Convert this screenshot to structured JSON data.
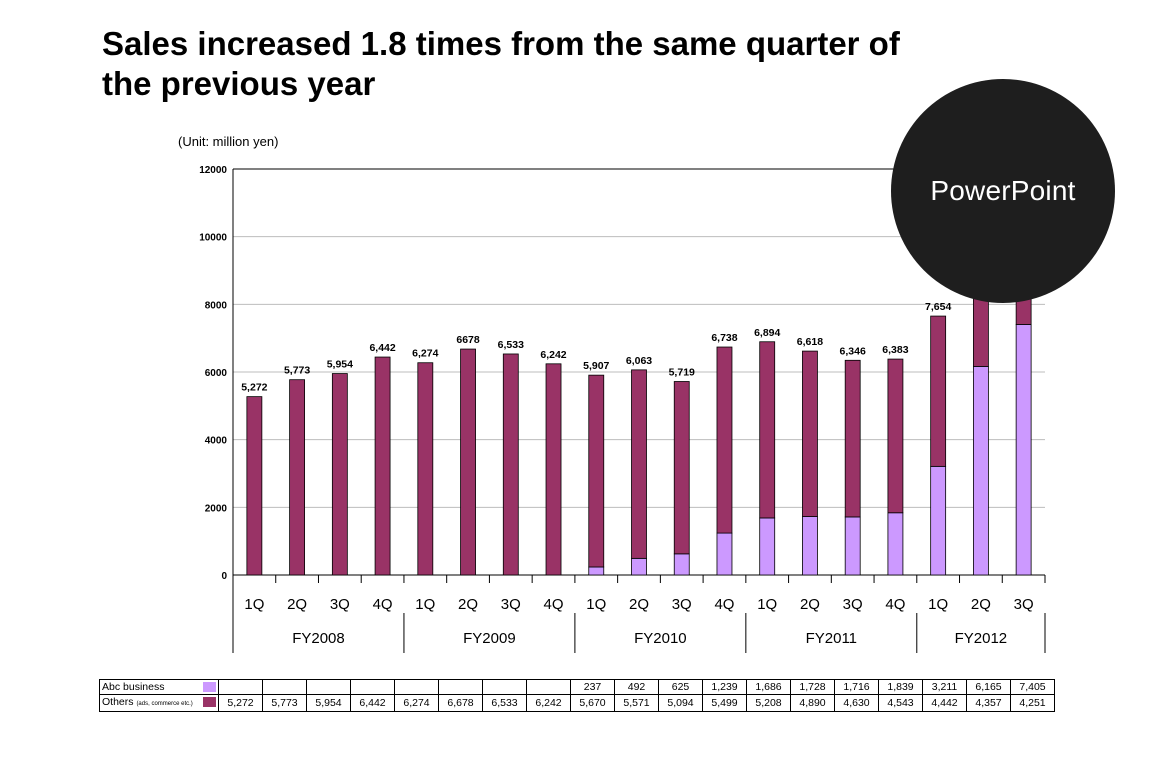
{
  "title": "Sales increased 1.8 times from the same quarter of the previous year",
  "unit_label": "(Unit: million yen)",
  "badge": "PowerPoint",
  "colors": {
    "abc": "#cc99ff",
    "others": "#993366"
  },
  "chart_data": {
    "type": "bar",
    "stacked": true,
    "ylim": [
      0,
      12000
    ],
    "yticks": [
      "0",
      "2000",
      "4000",
      "6000",
      "8000",
      "10000",
      "12000"
    ],
    "quarters": [
      "1Q",
      "2Q",
      "3Q",
      "4Q",
      "1Q",
      "2Q",
      "3Q",
      "4Q",
      "1Q",
      "2Q",
      "3Q",
      "4Q",
      "1Q",
      "2Q",
      "3Q",
      "4Q",
      "1Q",
      "2Q",
      "3Q"
    ],
    "fiscal_years": [
      {
        "label": "FY2008",
        "span": 4
      },
      {
        "label": "FY2009",
        "span": 4
      },
      {
        "label": "FY2010",
        "span": 4
      },
      {
        "label": "FY2011",
        "span": 4
      },
      {
        "label": "FY2012",
        "span": 3
      }
    ],
    "series": [
      {
        "name": "Abc business",
        "values": [
          0,
          0,
          0,
          0,
          0,
          0,
          0,
          0,
          237,
          492,
          625,
          1239,
          1686,
          1728,
          1716,
          1839,
          3211,
          6165,
          7405
        ]
      },
      {
        "name": "Others",
        "values": [
          5272,
          5773,
          5954,
          6442,
          6274,
          6678,
          6533,
          6242,
          5670,
          5571,
          5094,
          5499,
          5208,
          4890,
          4630,
          4543,
          4442,
          4357,
          4251
        ]
      }
    ],
    "totals": [
      "5,272",
      "5,773",
      "5,954",
      "6,442",
      "6,274",
      "6678",
      "6,533",
      "6,242",
      "5,907",
      "6,063",
      "5,719",
      "6,738",
      "6,894",
      "6,618",
      "6,346",
      "6,383",
      "7,654",
      "",
      ""
    ]
  },
  "table": {
    "rows": [
      {
        "label": "Abc business",
        "label_note": "",
        "cells": [
          "",
          "",
          "",
          "",
          "",
          "",
          "",
          "",
          "237",
          "492",
          "625",
          "1,239",
          "1,686",
          "1,728",
          "1,716",
          "1,839",
          "3,211",
          "6,165",
          "7,405"
        ]
      },
      {
        "label": "Others",
        "label_note": "(ads, commerce etc.)",
        "cells": [
          "5,272",
          "5,773",
          "5,954",
          "6,442",
          "6,274",
          "6,678",
          "6,533",
          "6,242",
          "5,670",
          "5,571",
          "5,094",
          "5,499",
          "5,208",
          "4,890",
          "4,630",
          "4,543",
          "4,442",
          "4,357",
          "4,251"
        ]
      }
    ]
  }
}
